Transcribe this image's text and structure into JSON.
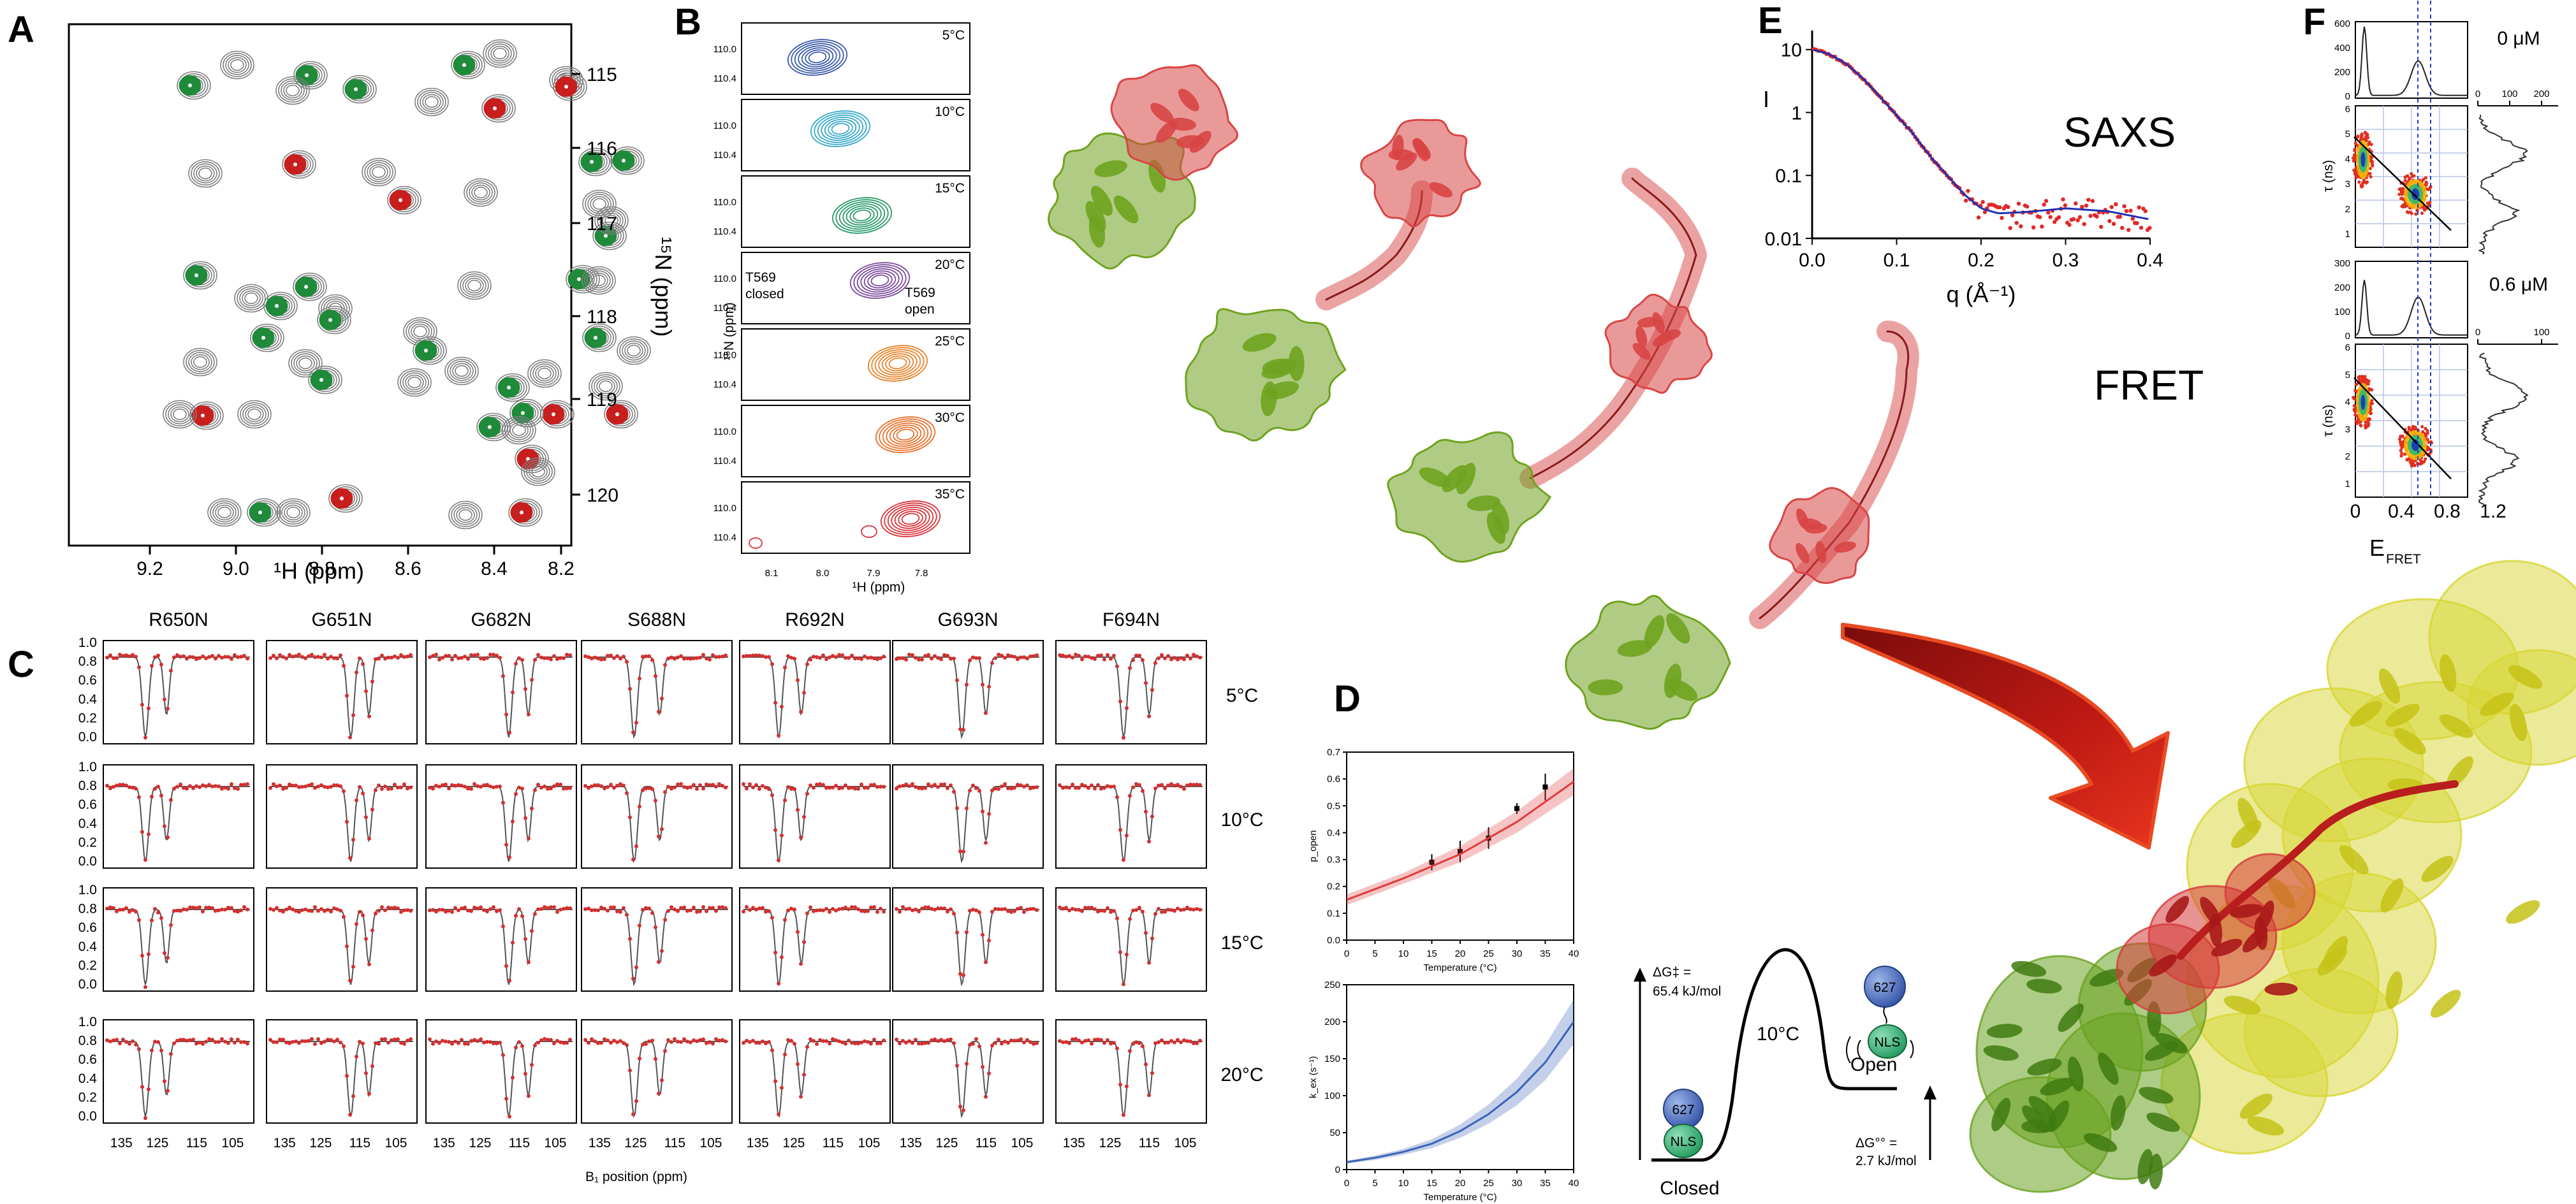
{
  "panel_labels": {
    "A": "A",
    "B": "B",
    "C": "C",
    "D": "D",
    "E": "E",
    "F": "F"
  },
  "panel_a": {
    "xlabel": "¹H (ppm)",
    "ylabel": "¹⁵N (ppm)",
    "x_ticks": [
      "9.2",
      "9.0",
      "8.8",
      "8.6",
      "8.4",
      "8.2"
    ],
    "y_ticks": [
      "115",
      "116",
      "117",
      "118",
      "119",
      "120"
    ]
  },
  "panel_b": {
    "temperatures": [
      "5°C",
      "10°C",
      "15°C",
      "20°C",
      "25°C",
      "30°C",
      "35°C"
    ],
    "colors": [
      "#3b5aa8",
      "#37a9c8",
      "#2a9a6a",
      "#7b4a9a",
      "#e8832a",
      "#e8702a",
      "#d8323a"
    ],
    "y_ticks": [
      "110.0",
      "110.4"
    ],
    "ylabel": "¹⁵N (ppm)",
    "xlabel": "¹H (ppm)",
    "x_ticks": [
      "8.1",
      "8.0",
      "7.9",
      "7.8"
    ],
    "closed_label": "T569\nclosed",
    "open_label": "T569\nopen"
  },
  "panel_c": {
    "residues": [
      "R650N",
      "G651N",
      "G682N",
      "S688N",
      "R692N",
      "G693N",
      "F694N"
    ],
    "temperatures": [
      "5°C",
      "10°C",
      "15°C",
      "20°C"
    ],
    "y_ticks": [
      "1.0",
      "0.8",
      "0.6",
      "0.4",
      "0.2",
      "0.0"
    ],
    "x_ticks": [
      "135",
      "125",
      "115",
      "105"
    ],
    "xlabel": "B₁ position (ppm)"
  },
  "panel_d": {
    "top": {
      "ylabel": "p_open",
      "xlabel": "Temperature (°C)",
      "y_ticks": [
        "0.7",
        "0.6",
        "0.5",
        "0.4",
        "0.3",
        "0.2",
        "0.1",
        "0.0"
      ],
      "x_ticks": [
        "0",
        "5",
        "10",
        "15",
        "20",
        "25",
        "30",
        "35",
        "40"
      ]
    },
    "bottom": {
      "ylabel": "k_ex (s⁻¹)",
      "xlabel": "Temperature (°C)",
      "y_ticks": [
        "250",
        "200",
        "150",
        "100",
        "50",
        "0"
      ],
      "x_ticks": [
        "0",
        "5",
        "10",
        "15",
        "20",
        "25",
        "30",
        "35",
        "40"
      ]
    }
  },
  "chart_data": [
    {
      "type": "scatter",
      "title": "",
      "xlabel": "Temperature (°C)",
      "ylabel": "p_open",
      "xlim": [
        0,
        40
      ],
      "ylim": [
        0,
        0.7
      ],
      "series": [
        {
          "x": [
            15,
            20,
            25,
            30,
            35
          ],
          "y": [
            0.29,
            0.33,
            0.38,
            0.49,
            0.57
          ],
          "err": [
            0.03,
            0.04,
            0.04,
            0.02,
            0.05
          ]
        },
        {
          "x": [
            0,
            10,
            20,
            30,
            40
          ],
          "y": [
            0.15,
            0.23,
            0.32,
            0.44,
            0.59
          ],
          "band": [
            0.02,
            0.02,
            0.03,
            0.04,
            0.05
          ]
        }
      ]
    },
    {
      "type": "line",
      "title": "",
      "xlabel": "Temperature (°C)",
      "ylabel": "k_ex (s⁻¹)",
      "xlim": [
        0,
        40
      ],
      "ylim": [
        0,
        250
      ],
      "series": [
        {
          "x": [
            0,
            5,
            10,
            15,
            20,
            25,
            30,
            35,
            40
          ],
          "y": [
            10,
            16,
            24,
            35,
            52,
            75,
            105,
            145,
            200
          ],
          "band": [
            2,
            3,
            4,
            6,
            9,
            13,
            18,
            24,
            30
          ]
        }
      ]
    },
    {
      "type": "scatter",
      "title": "",
      "xlabel": "q (Å⁻¹)",
      "ylabel": "I",
      "xlim": [
        0,
        0.4
      ],
      "ylim": [
        0.01,
        20
      ],
      "yscale": "log",
      "series": [
        {
          "x": [
            0,
            0.02,
            0.04,
            0.06,
            0.08,
            0.1,
            0.12,
            0.14,
            0.16,
            0.18,
            0.2,
            0.22,
            0.25,
            0.3,
            0.35,
            0.4
          ],
          "y": [
            10,
            8.5,
            6,
            3.5,
            1.8,
            0.9,
            0.45,
            0.2,
            0.1,
            0.05,
            0.03,
            0.025,
            0.026,
            0.03,
            0.027,
            0.02
          ]
        }
      ]
    }
  ],
  "panel_d_diagram": {
    "dg_ts": "ΔG‡ =\n65.4 kJ/mol",
    "temperature": "10°C",
    "closed": "Closed",
    "open": "Open",
    "dg0": "ΔG°° =\n2.7 kJ/mol",
    "domain_627": "627",
    "domain_nls": "NLS"
  },
  "panel_e": {
    "title": "SAXS",
    "ylabel": "I",
    "xlabel": "q (Å⁻¹)",
    "y_ticks": [
      "10",
      "1",
      "0.1",
      "0.01"
    ],
    "x_ticks": [
      "0.0",
      "0.1",
      "0.2",
      "0.3",
      "0.4"
    ],
    "fret_label": "FRET"
  },
  "panel_f": {
    "conc_top": "0 μM",
    "conc_bottom": "0.6 μM",
    "hist_top_y_ticks": [
      "600",
      "400",
      "200",
      "0"
    ],
    "hist_bottom_y_ticks": [
      "300",
      "200",
      "100",
      "0"
    ],
    "tau_ticks": [
      "6",
      "5",
      "4",
      "3",
      "2",
      "1"
    ],
    "tau_label": "τ (ns)",
    "side_ticks_top": [
      "0",
      "100",
      "200"
    ],
    "side_ticks_bottom": [
      "0",
      "100"
    ],
    "efret_ticks": [
      "0",
      "0.4",
      "0.8",
      "1.2"
    ],
    "xlabel": "E",
    "xlabel_sub": "FRET"
  },
  "colors": {
    "green_domain": "#6aa220",
    "red_domain": "#d63b3b",
    "yellow_domain": "#d8d633",
    "nmr_red": "#c81e1e",
    "nmr_green": "#1f8a3a",
    "nmr_gray": "#808080",
    "arrow": "#b01512"
  }
}
